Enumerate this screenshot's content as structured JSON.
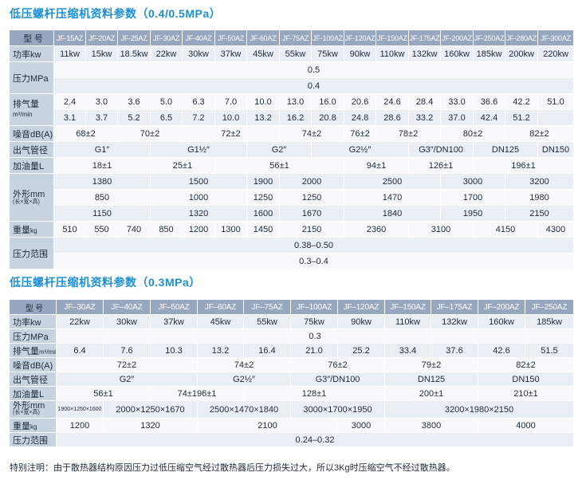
{
  "table1": {
    "title": "低压螺杆压缩机资料参数（0.4/0.5MPa）",
    "header_label": "型 号",
    "models": [
      "JF-15AZ",
      "JF-20AZ",
      "JF-25AZ",
      "JF-30AZ",
      "JF-40AZ",
      "JF-50AZ",
      "JF-60AZ",
      "JF-75AZ",
      "JF-100AZ",
      "JF-120AZ",
      "JF-150AZ",
      "JF-175AZ",
      "JF-200AZ",
      "JF-250AZ",
      "JF-280AZ",
      "JF-300AZ"
    ],
    "power_label": "功率kw",
    "power": [
      "11kw",
      "15kw",
      "18.5kw",
      "22kw",
      "30kw",
      "37kw",
      "45kw",
      "55kw",
      "75kw",
      "90kw",
      "110kw",
      "132kw",
      "160kw",
      "185kw",
      "200kw",
      "220kw"
    ],
    "pressure_label": "压力MPa",
    "pressure": [
      "0.5",
      "0.4"
    ],
    "flow_label": "排气量",
    "flow_unit": "m³/min",
    "flow_05": [
      "2.4",
      "3.0",
      "3.6",
      "5.0",
      "6.3",
      "7.0",
      "10.0",
      "13.0",
      "16.0",
      "20.6",
      "24.6",
      "28.4",
      "33.0",
      "36.6",
      "42.2",
      "51.0"
    ],
    "flow_04": [
      "3.1",
      "3.7",
      "5.2",
      "6.5",
      "7.2",
      "10.0",
      "13.2",
      "16.2",
      "20.8",
      "24.8",
      "28.6",
      "33.2",
      "37.0",
      "42.4",
      "51.2"
    ],
    "noise_label": "噪音dB(A)",
    "noise": [
      "68±2",
      "70±2",
      "72±2",
      "74±2",
      "76±2",
      "78±2",
      "80±2",
      "82±2"
    ],
    "outlet_label": "出气管径",
    "outlet": [
      "G1″",
      "G1½″",
      "G2″",
      "G2½″",
      "G3″/DN100",
      "DN125",
      "DN150"
    ],
    "oil_label": "加油量L",
    "oil": [
      "18±1",
      "25±1",
      "56±1",
      "94±1",
      "126±1",
      "196±1"
    ],
    "dims_label": "外形mm",
    "dims_sub": "(长×宽×高)",
    "dims_l": [
      "1380",
      "1500",
      "1900",
      "2000",
      "2500",
      "3000",
      "3200"
    ],
    "dims_w": [
      "850",
      "1000",
      "1250",
      "1250",
      "1470",
      "1700",
      "1980"
    ],
    "dims_h": [
      "1150",
      "1320",
      "1600",
      "1670",
      "1840",
      "1950",
      "2150"
    ],
    "weight_label": "重量",
    "weight_unit": "kg",
    "weight": [
      "510",
      "550",
      "740",
      "850",
      "1200",
      "1300",
      "1450",
      "2150",
      "2360",
      "3100",
      "4150",
      "4300"
    ],
    "range_label": "压力范围",
    "range": [
      "0.38–0.50",
      "0.3–0.4"
    ]
  },
  "table2": {
    "title": "低压螺杆压缩机资料参数（0.3MPa）",
    "header_label": "型 号",
    "models": [
      "JF–30AZ",
      "JF–40AZ",
      "JF–50AZ",
      "JF–60AZ",
      "JF–75AZ",
      "JF–100AZ",
      "JF–120AZ",
      "JF–150AZ",
      "JF–175AZ",
      "JF–200AZ",
      "JF–250AZ"
    ],
    "power_label": "功率kw",
    "power": [
      "22kw",
      "30kw",
      "37kw",
      "45kw",
      "55kw",
      "75kw",
      "90kw",
      "110kw",
      "132kw",
      "160kw",
      "185kw"
    ],
    "pressure_label": "压力MPa",
    "pressure": "0.3",
    "flow_label": "排气量",
    "flow_unit": "m³/min",
    "flow": [
      "6.4",
      "7.6",
      "10.3",
      "13.2",
      "16.4",
      "21.0",
      "25.2",
      "33.4",
      "37.6",
      "42.6",
      "51.5"
    ],
    "noise_label": "噪音dB(A)",
    "noise": [
      "72±2",
      "74±2",
      "76±2",
      "79±2",
      "82±2"
    ],
    "outlet_label": "出气管径",
    "outlet": [
      "G2″",
      "G2½″",
      "G3″/DN100",
      "DN125",
      "DN150"
    ],
    "oil_label": "加油量L",
    "oil": [
      "56±1",
      "74±196±1",
      "128±1",
      "200±1",
      "210±1"
    ],
    "dims_label": "外形mm",
    "dims_sub": "(长×宽×高)",
    "dims": [
      "1900×1250×1600",
      "2000×1250×1670",
      "2500×1470×1840",
      "3000×1700×1950",
      "3200×1980×2150"
    ],
    "weight_label": "重量",
    "weight_unit": "kg",
    "weight": [
      "1200",
      "1320",
      "2100",
      "3000",
      "3800",
      "4000"
    ],
    "range_label": "压力范围",
    "range": "0.24–0.32"
  },
  "footnote": "特别注明：由于散热器结构原因压力过低压缩空气经过散热器后压力损失过大，所以3Kg时压缩空气不经过散热器。"
}
